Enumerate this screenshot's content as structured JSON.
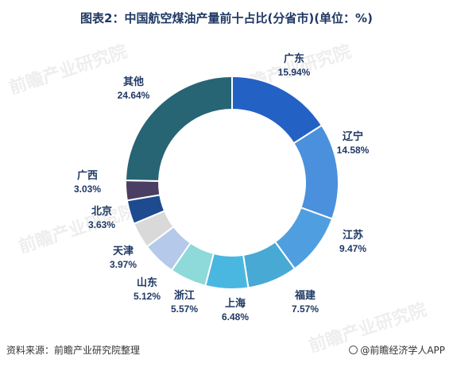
{
  "title": "图表2：中国航空煤油产量前十占比(分省市)(单位：%)",
  "footer": {
    "source": "资料来源：前瞻产业研究院整理",
    "brand": "@前瞻经济学人APP"
  },
  "watermark": "前瞻产业研究院",
  "chart_data": {
    "type": "pie",
    "subtype": "donut",
    "unit": "%",
    "series": [
      {
        "label": "广东",
        "value": 15.94,
        "color": "#2461c4"
      },
      {
        "label": "辽宁",
        "value": 14.58,
        "color": "#4a90dc"
      },
      {
        "label": "江苏",
        "value": 9.47,
        "color": "#4f9fe0"
      },
      {
        "label": "福建",
        "value": 7.57,
        "color": "#48a9d4"
      },
      {
        "label": "上海",
        "value": 6.48,
        "color": "#4ab7e0"
      },
      {
        "label": "浙江",
        "value": 5.57,
        "color": "#8ed9d9"
      },
      {
        "label": "山东",
        "value": 5.12,
        "color": "#b5c9ea"
      },
      {
        "label": "天津",
        "value": 3.97,
        "color": "#d9d9d9"
      },
      {
        "label": "北京",
        "value": 3.63,
        "color": "#1e4b8f"
      },
      {
        "label": "广西",
        "value": 3.03,
        "color": "#4a3f62"
      },
      {
        "label": "其他",
        "value": 24.64,
        "color": "#276474"
      }
    ]
  }
}
